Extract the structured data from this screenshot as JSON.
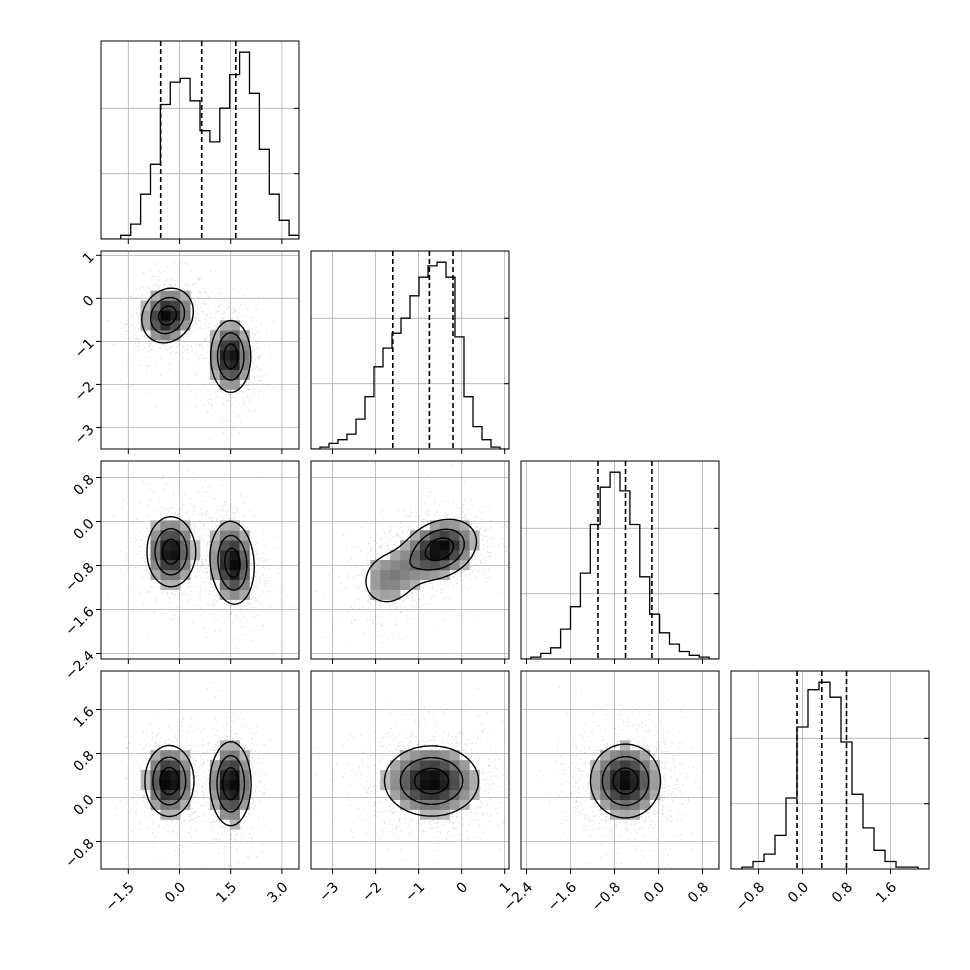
{
  "chart_data": {
    "type": "corner",
    "title": "",
    "n_dims": 4,
    "variables": [
      {
        "label": "",
        "range": [
          -2.3,
          3.5
        ],
        "ticks": [
          -1.5,
          0.0,
          1.5,
          3.0
        ],
        "tick_labels": [
          "−1.5",
          "0.0",
          "1.5",
          "3.0"
        ],
        "quantiles": [
          -0.55,
          0.65,
          1.65
        ],
        "histogram": [
          0,
          0,
          2,
          8,
          24,
          40,
          72,
          84,
          86,
          74,
          58,
          52,
          70,
          88,
          100,
          78,
          48,
          24,
          10,
          2
        ]
      },
      {
        "label": "",
        "range": [
          -3.5,
          1.1
        ],
        "ticks": [
          -3,
          -2,
          -1,
          0,
          1
        ],
        "tick_labels": [
          "−3",
          "−2",
          "−1",
          "0",
          "1"
        ],
        "quantiles": [
          -1.6,
          -0.75,
          -0.2
        ],
        "histogram": [
          0,
          1,
          3,
          5,
          8,
          16,
          28,
          44,
          54,
          62,
          70,
          82,
          92,
          98,
          100,
          92,
          60,
          28,
          12,
          5,
          1,
          0
        ]
      },
      {
        "label": "",
        "range": [
          -2.5,
          1.1
        ],
        "ticks": [
          -2.4,
          -1.6,
          -0.8,
          0.0,
          0.8
        ],
        "tick_labels": [
          "−2.4",
          "−1.6",
          "−0.8",
          "0.0",
          "0.8"
        ],
        "quantiles": [
          -1.1,
          -0.6,
          -0.12
        ],
        "histogram": [
          0,
          1,
          3,
          6,
          16,
          28,
          46,
          72,
          92,
          100,
          90,
          72,
          44,
          24,
          14,
          8,
          4,
          2,
          1,
          0
        ]
      },
      {
        "label": "",
        "range": [
          -1.3,
          2.3
        ],
        "ticks": [
          -0.8,
          0.0,
          0.8,
          1.6
        ],
        "tick_labels": [
          "−0.8",
          "0.0",
          "0.8",
          "1.6"
        ],
        "quantiles": [
          -0.1,
          0.35,
          0.8
        ],
        "histogram": [
          0,
          1,
          4,
          8,
          18,
          38,
          76,
          96,
          100,
          92,
          68,
          40,
          22,
          10,
          4,
          1,
          1,
          0
        ]
      }
    ],
    "pair_density": {
      "1-0": [
        {
          "mx": -0.35,
          "my": -0.4,
          "sx": 0.45,
          "sy": 0.38,
          "rho": 0.15,
          "w": 0.5
        },
        {
          "mx": 1.5,
          "my": -1.35,
          "sx": 0.35,
          "sy": 0.5,
          "rho": 0.0,
          "w": 0.5
        }
      ],
      "2-0": [
        {
          "mx": -0.25,
          "my": -0.55,
          "sx": 0.42,
          "sy": 0.38,
          "rho": 0.0,
          "w": 0.5
        },
        {
          "mx": 1.55,
          "my": -0.75,
          "sx": 0.38,
          "sy": 0.45,
          "rho": -0.1,
          "w": 0.5
        }
      ],
      "2-1": [
        {
          "mx": -0.5,
          "my": -0.5,
          "sx": 0.5,
          "sy": 0.32,
          "rho": 0.25,
          "w": 0.68
        },
        {
          "mx": -1.7,
          "my": -1.05,
          "sx": 0.45,
          "sy": 0.35,
          "rho": 0.1,
          "w": 0.32
        }
      ],
      "3-0": [
        {
          "mx": -0.3,
          "my": 0.3,
          "sx": 0.42,
          "sy": 0.38,
          "rho": 0.0,
          "w": 0.5
        },
        {
          "mx": 1.5,
          "my": 0.25,
          "sx": 0.35,
          "sy": 0.45,
          "rho": 0.0,
          "w": 0.5
        }
      ],
      "3-1": [
        {
          "mx": -0.7,
          "my": 0.3,
          "sx": 0.65,
          "sy": 0.38,
          "rho": 0.0,
          "w": 1.0
        }
      ],
      "3-2": [
        {
          "mx": -0.6,
          "my": 0.3,
          "sx": 0.38,
          "sy": 0.4,
          "rho": 0.0,
          "w": 1.0
        }
      ]
    },
    "contour_levels": [
      0.25,
      0.55,
      0.85
    ],
    "grid": true,
    "histogram_style": "step",
    "quantile_style": "dashed"
  }
}
